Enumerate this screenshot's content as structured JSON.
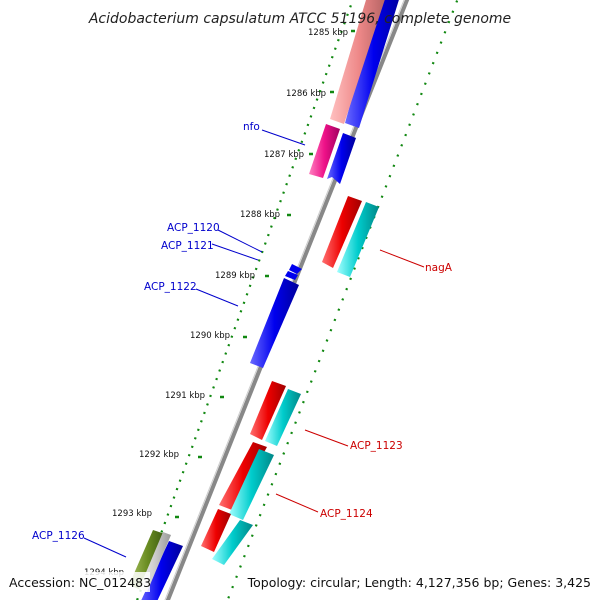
{
  "title": "Acidobacterium capsulatum ATCC 51196, complete genome",
  "footer": {
    "accession": "Accession: NC_012483",
    "summary": "Topology: circular; Length: 4,127,356 bp; Genes: 3,425"
  },
  "ticks": [
    "1285 kbp",
    "1286 kbp",
    "1287 kbp",
    "1288 kbp",
    "1289 kbp",
    "1290 kbp",
    "1291 kbp",
    "1292 kbp",
    "1293 kbp",
    "1294 kbp"
  ],
  "gene_labels": {
    "nfo": "nfo",
    "acp1120": "ACP_1120",
    "acp1121": "ACP_1121",
    "acp1122": "ACP_1122",
    "naga": "nagA",
    "acp1123": "ACP_1123",
    "acp1124": "ACP_1124",
    "acp1126": "ACP_1126"
  },
  "colors": {
    "forward_cds": "#0000ee",
    "reverse_cds": "#ee0000",
    "reverse_rna": "#00cccc",
    "mobile": "#ee1188",
    "salmon": "#ee8080",
    "olive": "#6b8e23",
    "backbone": "#888888",
    "gc_dots": "#118811"
  }
}
